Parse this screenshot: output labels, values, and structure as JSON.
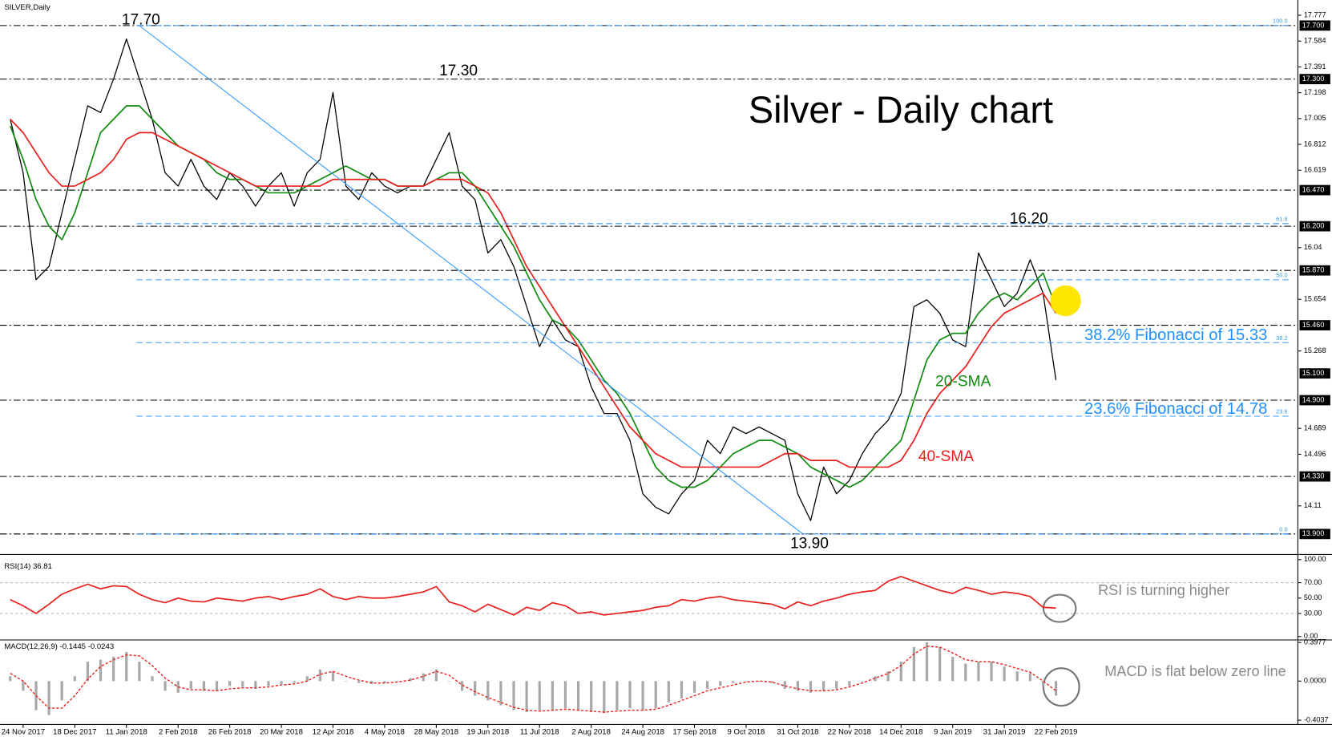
{
  "chart_data": [
    {
      "type": "line",
      "label": "SILVER,Daily",
      "title": "Silver - Daily chart",
      "categories": [
        null,
        "24 Nov 2017",
        null,
        null,
        null,
        "18 Dec 2017",
        null,
        null,
        null,
        "11 Jan 2018",
        null,
        null,
        null,
        "2 Feb 2018",
        null,
        null,
        null,
        "26 Feb 2018",
        null,
        null,
        null,
        "20 Mar 2018",
        null,
        null,
        null,
        "12 Apr 2018",
        null,
        null,
        null,
        "4 May 2018",
        null,
        null,
        null,
        "28 May 2018",
        null,
        null,
        null,
        "19 Jun 2018",
        null,
        null,
        null,
        "11 Jul 2018",
        null,
        null,
        null,
        "2 Aug 2018",
        null,
        null,
        null,
        "24 Aug 2018",
        null,
        null,
        null,
        "17 Sep 2018",
        null,
        null,
        null,
        "9 Oct 2018",
        null,
        null,
        null,
        "31 Oct 2018",
        null,
        null,
        null,
        "22 Nov 2018",
        null,
        null,
        null,
        "14 Dec 2018",
        null,
        null,
        null,
        "9 Jan 2019",
        null,
        null,
        null,
        "31 Jan 2019",
        null,
        null,
        null,
        "22 Feb 2019"
      ],
      "series": [
        {
          "color": "#000000",
          "values": [
            17.0,
            16.6,
            15.8,
            15.9,
            16.3,
            16.7,
            17.1,
            17.05,
            17.3,
            17.6,
            17.3,
            17.0,
            16.6,
            16.5,
            16.7,
            16.5,
            16.4,
            16.6,
            16.5,
            16.35,
            16.5,
            16.6,
            16.35,
            16.6,
            16.7,
            17.2,
            16.5,
            16.4,
            16.6,
            16.5,
            16.45,
            16.5,
            16.5,
            16.7,
            16.9,
            16.5,
            16.4,
            16.0,
            16.1,
            15.9,
            15.6,
            15.3,
            15.5,
            15.35,
            15.3,
            15.0,
            14.8,
            14.8,
            14.6,
            14.2,
            14.1,
            14.05,
            14.2,
            14.3,
            14.6,
            14.5,
            14.7,
            14.65,
            14.7,
            14.65,
            14.6,
            14.2,
            14.0,
            14.4,
            14.2,
            14.3,
            14.5,
            14.65,
            14.75,
            14.95,
            15.6,
            15.65,
            15.55,
            15.35,
            15.3,
            16.0,
            15.8,
            15.6,
            15.7,
            15.95,
            15.7,
            15.05
          ]
        },
        {
          "name": "20-SMA",
          "color": "#118a11",
          "values": [
            16.95,
            16.7,
            16.4,
            16.2,
            16.1,
            16.3,
            16.6,
            16.9,
            17.0,
            17.1,
            17.1,
            17.0,
            16.9,
            16.8,
            16.75,
            16.7,
            16.6,
            16.55,
            16.55,
            16.5,
            16.45,
            16.45,
            16.45,
            16.5,
            16.55,
            16.6,
            16.65,
            16.6,
            16.55,
            16.55,
            16.5,
            16.5,
            16.5,
            16.55,
            16.6,
            16.6,
            16.5,
            16.35,
            16.2,
            16.05,
            15.85,
            15.65,
            15.5,
            15.45,
            15.35,
            15.2,
            15.05,
            14.95,
            14.8,
            14.6,
            14.4,
            14.3,
            14.25,
            14.25,
            14.3,
            14.4,
            14.5,
            14.55,
            14.6,
            14.6,
            14.55,
            14.5,
            14.4,
            14.35,
            14.3,
            14.25,
            14.3,
            14.4,
            14.5,
            14.6,
            14.9,
            15.2,
            15.35,
            15.4,
            15.4,
            15.55,
            15.65,
            15.7,
            15.65,
            15.75,
            15.85,
            15.6
          ]
        },
        {
          "name": "40-SMA",
          "color": "#e8201c",
          "values": [
            17.0,
            16.9,
            16.75,
            16.6,
            16.5,
            16.5,
            16.55,
            16.6,
            16.7,
            16.85,
            16.9,
            16.9,
            16.85,
            16.8,
            16.75,
            16.7,
            16.65,
            16.6,
            16.55,
            16.5,
            16.5,
            16.5,
            16.5,
            16.5,
            16.5,
            16.55,
            16.55,
            16.55,
            16.55,
            16.55,
            16.5,
            16.5,
            16.5,
            16.55,
            16.55,
            16.55,
            16.5,
            16.45,
            16.3,
            16.1,
            15.9,
            15.75,
            15.6,
            15.45,
            15.3,
            15.15,
            15.0,
            14.85,
            14.7,
            14.6,
            14.5,
            14.45,
            14.4,
            14.4,
            14.4,
            14.4,
            14.4,
            14.4,
            14.4,
            14.45,
            14.5,
            14.5,
            14.45,
            14.45,
            14.45,
            14.4,
            14.4,
            14.4,
            14.4,
            14.45,
            14.6,
            14.8,
            14.95,
            15.05,
            15.15,
            15.3,
            15.45,
            15.55,
            15.6,
            15.65,
            15.7,
            15.55
          ]
        }
      ],
      "ylim": [
        13.753,
        17.891
      ],
      "yticks": [
        17.777,
        17.584,
        17.391,
        17.198,
        17.005,
        16.812,
        16.619,
        16.04,
        15.654,
        15.268,
        14.689,
        14.496,
        14.11
      ],
      "levels": [
        {
          "value": 17.7,
          "label": "17.700"
        },
        {
          "value": 17.3,
          "label": "17.300"
        },
        {
          "value": 16.47,
          "label": "16.470"
        },
        {
          "value": 16.2,
          "label": "16.200"
        },
        {
          "value": 15.87,
          "label": "15.870"
        },
        {
          "value": 15.46,
          "label": "15.460"
        },
        {
          "value": 14.9,
          "label": "14.900"
        },
        {
          "value": 14.33,
          "label": "14.330"
        },
        {
          "value": 13.9,
          "label": "13.900"
        }
      ],
      "last_price": {
        "value": 15.1,
        "label": "15.100"
      },
      "fibonacci": [
        {
          "level": "100.0",
          "value": 17.7
        },
        {
          "level": "61.8",
          "value": 16.22
        },
        {
          "level": "50.0",
          "value": 15.8
        },
        {
          "level": "38.2",
          "value": 15.33
        },
        {
          "level": "23.6",
          "value": 14.78
        },
        {
          "level": "0.0",
          "value": 13.9
        }
      ],
      "fib_notes": [
        {
          "text": "38.2% Fibonacci of 15.33",
          "value": 15.33
        },
        {
          "text": "23.6% Fibonacci of 14.78",
          "value": 14.78
        }
      ],
      "annotations": [
        {
          "label": "17.70",
          "value": 17.7
        },
        {
          "label": "17.30",
          "value": 17.3
        },
        {
          "label": "16.20",
          "value": 16.2
        },
        {
          "label": "13.90",
          "value": 13.9
        }
      ],
      "trendline": {
        "x": [
          9.99,
          61.4
        ],
        "values": [
          17.7,
          13.9
        ],
        "color": "#3399ff"
      }
    },
    {
      "type": "line",
      "title": "RSI(14) 36.81",
      "note": "RSI is turning higher",
      "series": [
        {
          "color": "#e8201c",
          "values": [
            48,
            40,
            30,
            42,
            55,
            62,
            68,
            62,
            66,
            65,
            55,
            48,
            44,
            50,
            46,
            45,
            50,
            48,
            46,
            50,
            52,
            48,
            52,
            55,
            62,
            52,
            48,
            52,
            50,
            50,
            52,
            55,
            58,
            65,
            45,
            40,
            32,
            42,
            35,
            28,
            38,
            34,
            44,
            40,
            30,
            32,
            28,
            30,
            32,
            34,
            38,
            40,
            48,
            46,
            50,
            52,
            48,
            46,
            44,
            42,
            36,
            45,
            40,
            46,
            50,
            55,
            58,
            60,
            72,
            78,
            72,
            66,
            60,
            56,
            64,
            60,
            55,
            58,
            56,
            52,
            38,
            37
          ]
        }
      ],
      "ylim": [
        -3.3,
        104.4
      ],
      "yticks": [
        {
          "value": 100,
          "label": "100.00"
        },
        {
          "value": 70,
          "label": "70.00"
        },
        {
          "value": 50,
          "label": "50.00"
        },
        {
          "value": 30,
          "label": "30.00"
        },
        {
          "value": 0,
          "label": "0.00"
        }
      ]
    },
    {
      "type": "macd",
      "title": "MACD(12,26,9) -0.1445 -0.0243",
      "note": "MACD is flat below zero line",
      "series": [
        {
          "type": "bar",
          "color": "#a8a8a8",
          "values": [
            0.05,
            -0.1,
            -0.3,
            -0.35,
            -0.2,
            0.05,
            0.2,
            0.22,
            0.25,
            0.3,
            0.2,
            0.05,
            -0.1,
            -0.12,
            -0.08,
            -0.1,
            -0.1,
            -0.05,
            -0.06,
            -0.08,
            -0.05,
            -0.03,
            -0.02,
            0.05,
            0.12,
            0.1,
            0.0,
            -0.02,
            -0.03,
            -0.02,
            0.0,
            0.03,
            0.08,
            0.12,
            0.0,
            -0.1,
            -0.15,
            -0.2,
            -0.25,
            -0.3,
            -0.32,
            -0.3,
            -0.3,
            -0.28,
            -0.3,
            -0.32,
            -0.33,
            -0.3,
            -0.28,
            -0.3,
            -0.28,
            -0.22,
            -0.18,
            -0.12,
            -0.08,
            -0.05,
            -0.02,
            0.0,
            0.0,
            -0.02,
            -0.08,
            -0.1,
            -0.12,
            -0.1,
            -0.08,
            -0.05,
            0.0,
            0.05,
            0.1,
            0.2,
            0.35,
            0.4,
            0.35,
            0.25,
            0.18,
            0.2,
            0.2,
            0.15,
            0.1,
            0.08,
            -0.05,
            -0.15
          ]
        },
        {
          "type": "line",
          "color": "#e8201c",
          "values": [
            0.08,
            0.0,
            -0.15,
            -0.28,
            -0.28,
            -0.15,
            0.02,
            0.15,
            0.22,
            0.27,
            0.26,
            0.16,
            0.03,
            -0.06,
            -0.09,
            -0.09,
            -0.1,
            -0.08,
            -0.07,
            -0.07,
            -0.06,
            -0.04,
            -0.03,
            0.0,
            0.07,
            0.1,
            0.05,
            0.01,
            -0.02,
            -0.02,
            -0.01,
            0.01,
            0.05,
            0.1,
            0.06,
            -0.04,
            -0.11,
            -0.17,
            -0.22,
            -0.27,
            -0.3,
            -0.31,
            -0.3,
            -0.29,
            -0.3,
            -0.31,
            -0.32,
            -0.31,
            -0.3,
            -0.3,
            -0.29,
            -0.25,
            -0.2,
            -0.15,
            -0.1,
            -0.07,
            -0.04,
            -0.01,
            0.0,
            -0.01,
            -0.05,
            -0.08,
            -0.1,
            -0.1,
            -0.09,
            -0.06,
            -0.02,
            0.03,
            0.08,
            0.16,
            0.28,
            0.36,
            0.35,
            0.29,
            0.22,
            0.2,
            0.2,
            0.17,
            0.13,
            0.09,
            0.0,
            -0.1
          ]
        }
      ],
      "ylim": [
        -0.448,
        0.4154
      ],
      "yticks": [
        {
          "value": 0.3977,
          "label": "0.3977"
        },
        {
          "value": 0,
          "label": "0.0000"
        },
        {
          "value": -0.4037,
          "label": "-0.4037"
        }
      ]
    }
  ]
}
